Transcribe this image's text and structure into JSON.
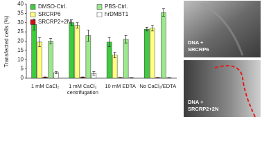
{
  "chart_data": {
    "type": "bar",
    "y_label": "Transfected cells (%)",
    "categories": [
      "1 mM CaCl₂",
      "1 mM CaCl₂\ncentrifugation",
      "10 mM EDTA",
      "No CaCl₂/EDTA"
    ],
    "series": [
      {
        "name": "DMSO-Ctrl.",
        "color": "#3dcc3d",
        "values": [
          29,
          30,
          19.5,
          26.5
        ],
        "errors": [
          3,
          1.5,
          2.5,
          1
        ]
      },
      {
        "name": "SRCRP6",
        "color": "#ffff80",
        "values": [
          19.5,
          28.5,
          12.5,
          27
        ],
        "errors": [
          2.5,
          1.5,
          1.5,
          1.5
        ]
      },
      {
        "name": "SRCRP2+2N",
        "color": "#cc1111",
        "values": [
          0.5,
          0.5,
          0.3,
          0.3
        ],
        "errors": [
          0.2,
          0.2,
          0.1,
          0.1
        ]
      },
      {
        "name": "PBS-Ctrl.",
        "color": "#9de88e",
        "values": [
          20,
          23,
          21,
          35.5
        ],
        "errors": [
          1.5,
          3,
          2,
          2
        ]
      },
      {
        "name": "hrDMBT1",
        "color": "#ffffff",
        "values": [
          3,
          2.5,
          0.2,
          0.2
        ],
        "errors": [
          0.5,
          1,
          0.1,
          0.1
        ]
      }
    ],
    "ylim": [
      0,
      40
    ],
    "yticks": [
      0,
      5,
      10,
      15,
      20,
      25,
      30,
      35,
      40
    ],
    "legend": "top-left"
  },
  "panels": [
    {
      "label": [
        "DNA +",
        "SRCRP6"
      ]
    },
    {
      "label": [
        "DNA +",
        "SRCRP2+2N"
      ]
    }
  ]
}
